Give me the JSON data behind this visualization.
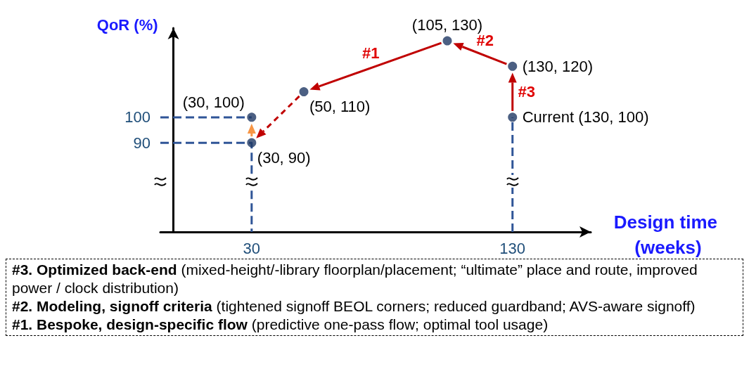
{
  "chart_data": {
    "type": "scatter",
    "xlabel": "Design time (weeks)",
    "ylabel": "QoR (%)",
    "xlim": [
      -5,
      160
    ],
    "ylim": [
      55,
      135
    ],
    "xticks": [
      30,
      130
    ],
    "yticks": [
      90,
      100
    ],
    "grid": false,
    "series": [
      {
        "type": "line",
        "color": "#2f5597",
        "line_style": "dashed",
        "marker": "none",
        "x": [
          -5,
          30,
          30
        ],
        "values": [
          90,
          90,
          55
        ]
      },
      {
        "type": "line",
        "color": "#2f5597",
        "line_style": "dashed",
        "marker": "none",
        "x": [
          -5,
          30
        ],
        "values": [
          100,
          100
        ]
      },
      {
        "type": "line",
        "color": "#2f5597",
        "line_style": "dashed",
        "marker": "none",
        "x": [
          130,
          130
        ],
        "values": [
          55,
          100
        ]
      },
      {
        "color": "#1f3864",
        "marker": "circle",
        "x": [
          130,
          130,
          105,
          50,
          30,
          30
        ],
        "values": [
          100,
          120,
          130,
          110,
          90,
          100
        ]
      }
    ],
    "annotations": [
      {
        "text": "(30, 90)",
        "x": 30,
        "y": 90
      },
      {
        "text": "(30, 100)",
        "x": 30,
        "y": 100
      },
      {
        "text": "(50, 110)",
        "x": 50,
        "y": 110
      },
      {
        "text": "(105, 130)",
        "x": 105,
        "y": 130
      },
      {
        "text": "(130, 120)",
        "x": 130,
        "y": 120
      },
      {
        "text": "Current (130, 100)",
        "x": 130,
        "y": 100
      },
      "#3",
      "#2",
      "#1",
      "#3. Optimized back-end (mixed-height/-library floorplan/placement; “ultimate” place and route, improved power / clock distribution)",
      "#2. Modeling, signoff criteria (tightened signoff BEOL corners; reduced guardband; AVS-aware signoff)",
      "#1. Bespoke, design-specific flow (predictive one-pass flow; optimal tool usage)"
    ]
  }
}
